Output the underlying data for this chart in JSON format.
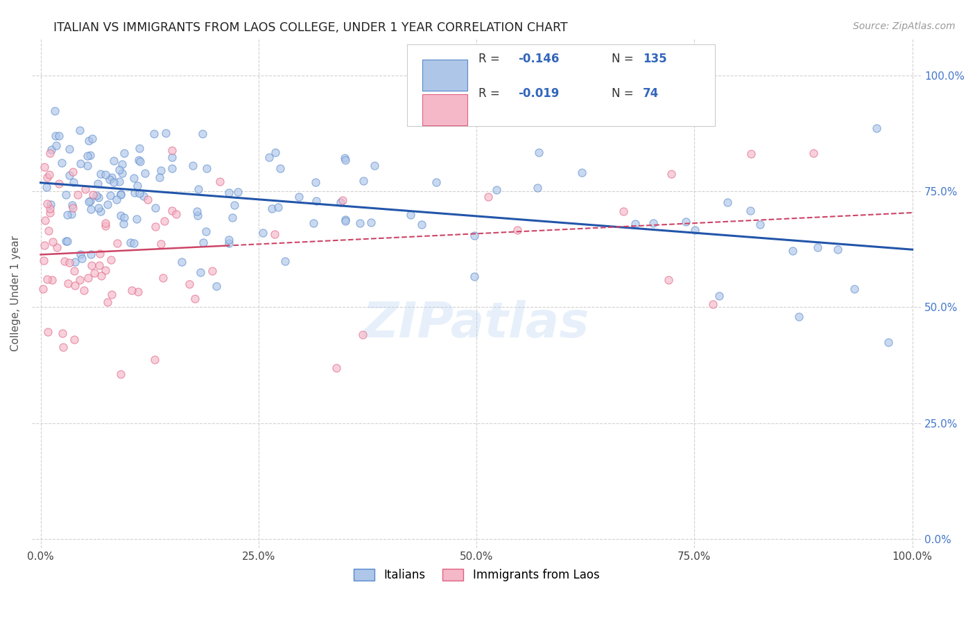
{
  "title": "ITALIAN VS IMMIGRANTS FROM LAOS COLLEGE, UNDER 1 YEAR CORRELATION CHART",
  "source": "Source: ZipAtlas.com",
  "ylabel": "College, Under 1 year",
  "xlim": [
    0,
    1
  ],
  "ylim": [
    0,
    1
  ],
  "xticks": [
    0,
    0.25,
    0.5,
    0.75,
    1.0
  ],
  "yticks": [
    0.0,
    0.25,
    0.5,
    0.75,
    1.0
  ],
  "xticklabels": [
    "0.0%",
    "25.0%",
    "50.0%",
    "75.0%",
    "100.0%"
  ],
  "yticklabels": [
    "0.0%",
    "25.0%",
    "50.0%",
    "75.0%",
    "100.0%"
  ],
  "italians_color": "#aec6e8",
  "italians_edge_color": "#5588cc",
  "laos_color": "#f4b8c8",
  "laos_edge_color": "#e06080",
  "trend_italian_color": "#2255aa",
  "trend_laos_color": "#cc4466",
  "background_color": "#ffffff",
  "grid_color": "#cccccc",
  "title_color": "#222222",
  "watermark": "ZIPatlas",
  "marker_size": 65,
  "alpha": 0.65,
  "right_tick_color": "#4477cc"
}
